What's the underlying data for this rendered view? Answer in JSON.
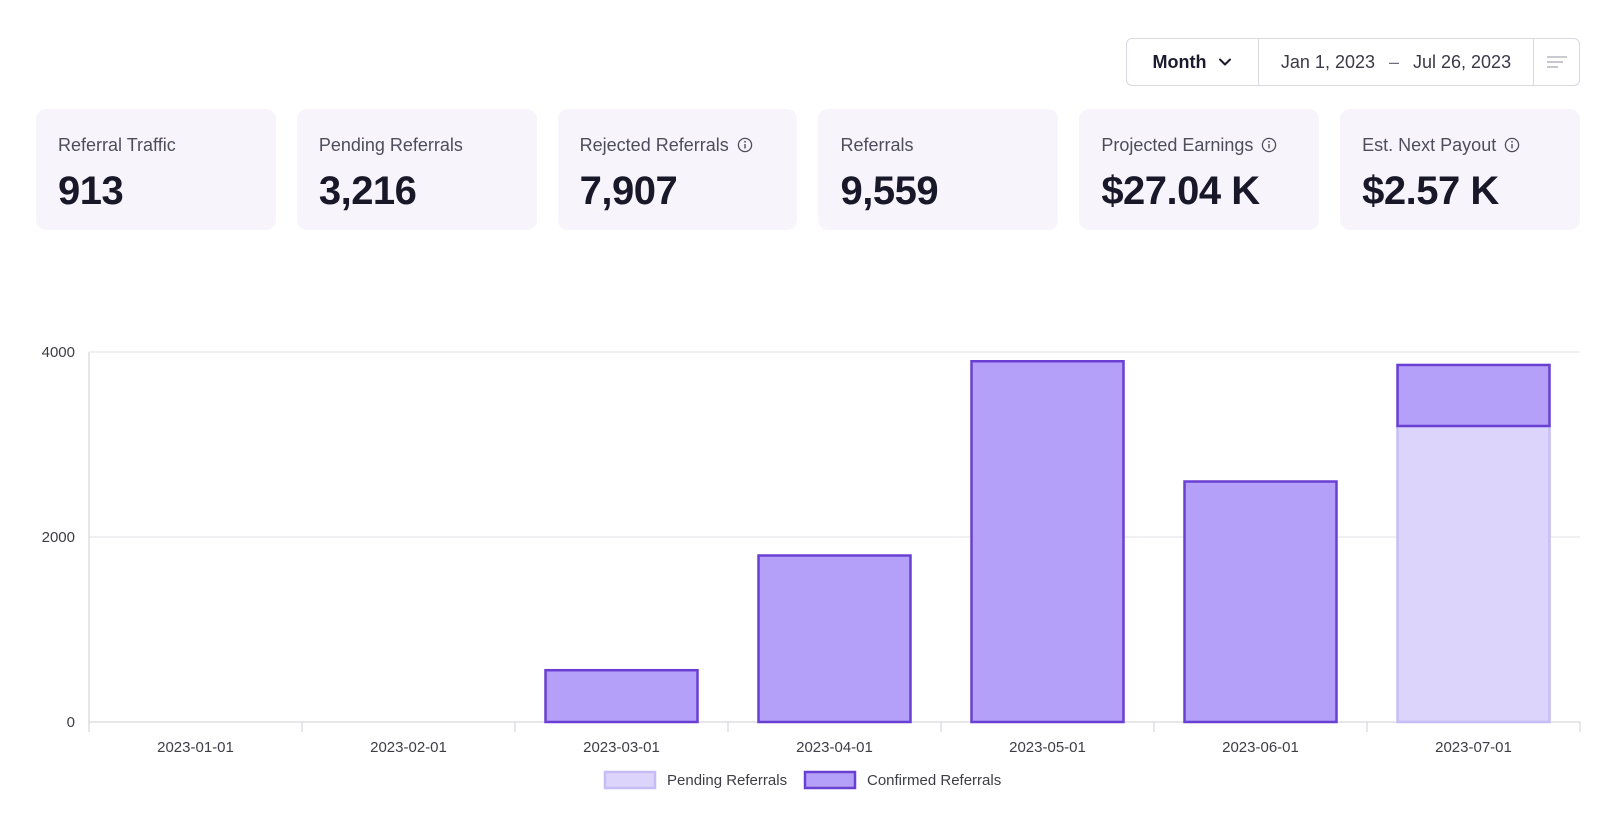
{
  "toolbar": {
    "period": "Month",
    "date_start": "Jan 1, 2023",
    "date_separator": "–",
    "date_end": "Jul 26, 2023"
  },
  "cards": [
    {
      "label": "Referral Traffic",
      "value": "913",
      "info": false
    },
    {
      "label": "Pending Referrals",
      "value": "3,216",
      "info": false
    },
    {
      "label": "Rejected Referrals",
      "value": "7,907",
      "info": true
    },
    {
      "label": "Referrals",
      "value": "9,559",
      "info": false
    },
    {
      "label": "Projected Earnings",
      "value": "$27.04 K",
      "info": true
    },
    {
      "label": "Est. Next Payout",
      "value": "$2.57 K",
      "info": true
    }
  ],
  "colors": {
    "pending_fill": "#dcd4fb",
    "pending_stroke": "#c7bdf6",
    "confirmed_fill": "#b4a0f8",
    "confirmed_stroke": "#6a3fd3",
    "grid": "#e2e2e6",
    "tick_text": "#3d3d45"
  },
  "chart_data": {
    "type": "bar",
    "stacked": true,
    "categories": [
      "2023-01-01",
      "2023-02-01",
      "2023-03-01",
      "2023-04-01",
      "2023-05-01",
      "2023-06-01",
      "2023-07-01"
    ],
    "series": [
      {
        "name": "Pending Referrals",
        "values": [
          0,
          0,
          0,
          0,
          0,
          0,
          3200
        ]
      },
      {
        "name": "Confirmed Referrals",
        "values": [
          0,
          0,
          560,
          1800,
          3900,
          2600,
          660
        ]
      }
    ],
    "yticks": [
      0,
      2000,
      4000
    ],
    "ylim": [
      0,
      4000
    ],
    "grid": true,
    "legend": "bottom"
  }
}
